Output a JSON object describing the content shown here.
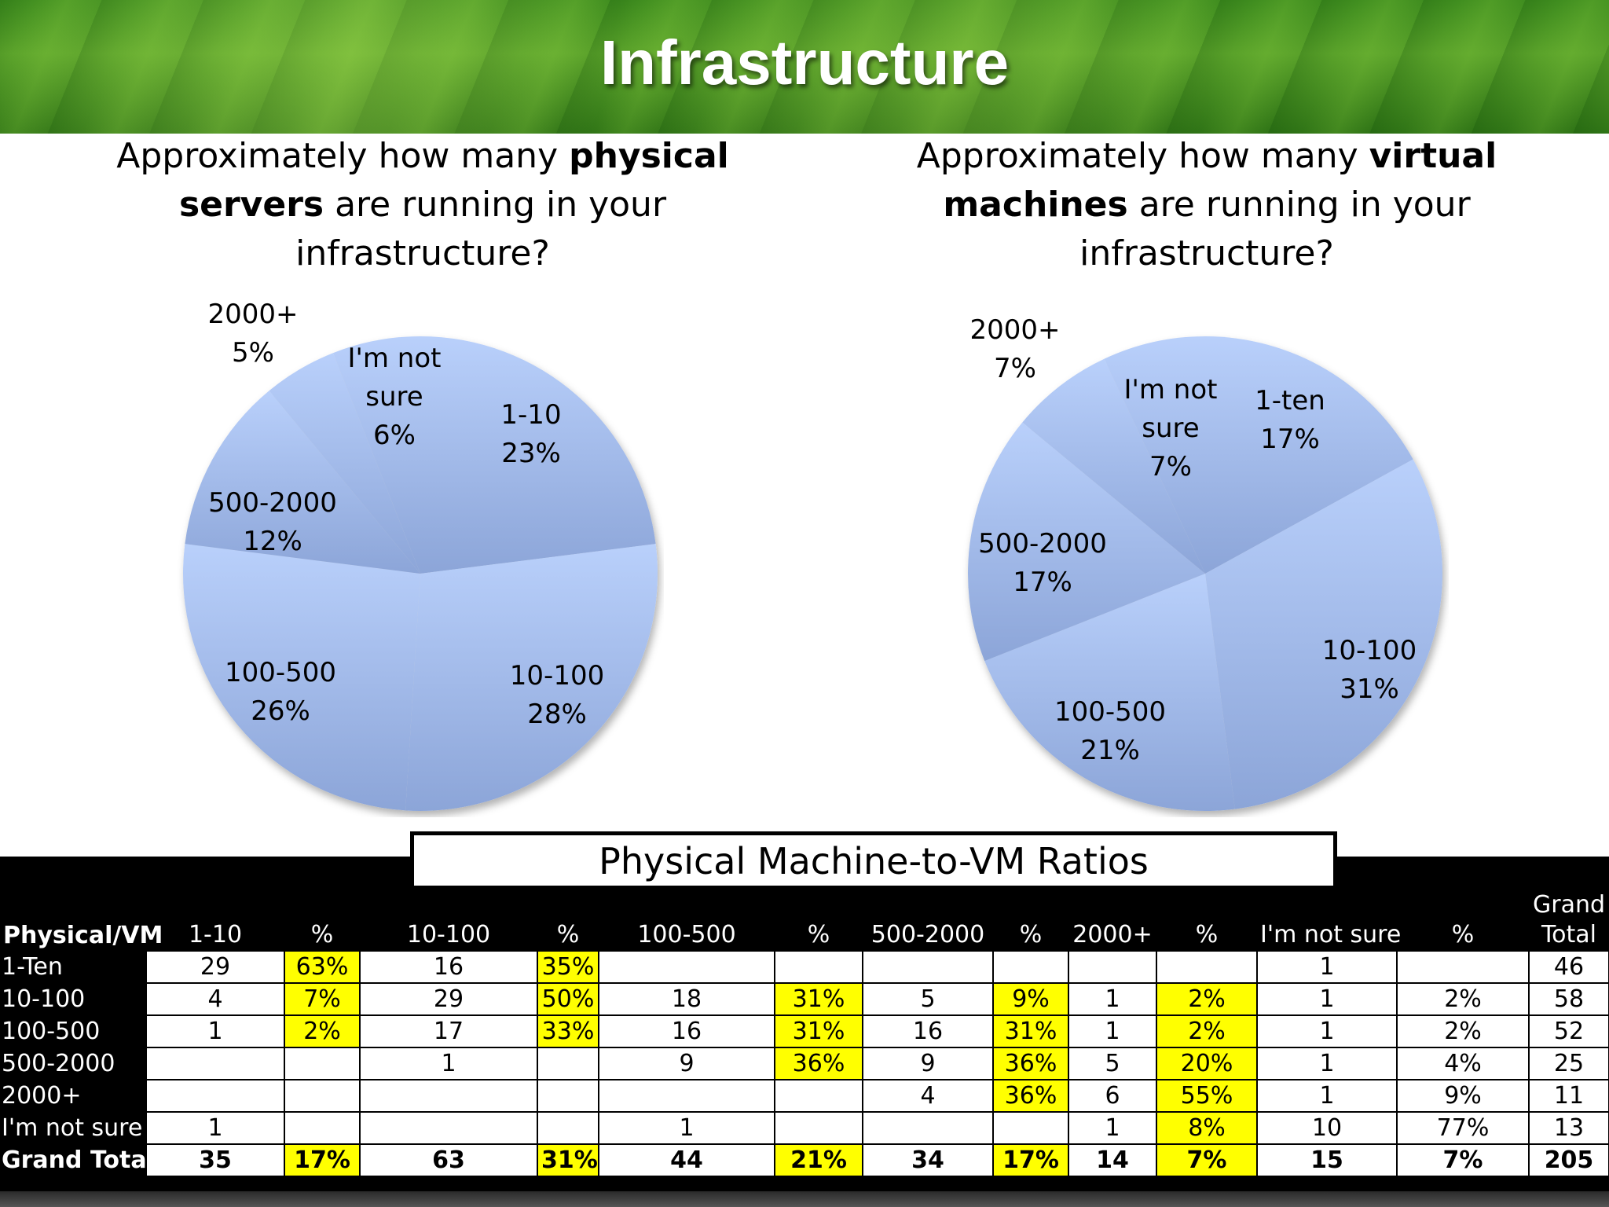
{
  "slide_title": "Infrastructure",
  "colors": {
    "pie_top": "#b7cdfa",
    "pie_bottom": "#8ea6d9",
    "highlight": "#ffff00",
    "header_bg": "#000000"
  },
  "chart_data": [
    {
      "type": "pie",
      "title_parts": [
        "Approximately how many ",
        "physical servers",
        " are running in your infrastructure?"
      ],
      "categories": [
        "1-10",
        "10-100",
        "100-500",
        "500-2000",
        "2000+",
        "I'm not sure"
      ],
      "values": [
        23,
        28,
        26,
        12,
        5,
        6
      ],
      "value_labels": [
        "23%",
        "28%",
        "26%",
        "12%",
        "5%",
        "6%"
      ],
      "label_lines": [
        [
          "I'm not",
          "sure"
        ]
      ]
    },
    {
      "type": "pie",
      "title_parts": [
        "Approximately how many ",
        "virtual machines",
        " are running in your infrastructure?"
      ],
      "categories": [
        "1-ten",
        "10-100",
        "100-500",
        "500-2000",
        "2000+",
        "I'm not sure"
      ],
      "values": [
        17,
        31,
        21,
        17,
        7,
        7
      ],
      "value_labels": [
        "17%",
        "31%",
        "21%",
        "17%",
        "7%",
        "7%"
      ],
      "label_lines": [
        [
          "I'm not",
          "sure"
        ]
      ]
    },
    {
      "type": "table",
      "title": "Physical Machine-to-VM Ratios",
      "header": [
        "Physical/VM",
        "1-10",
        "%",
        "10-100",
        "%",
        "100-500",
        "%",
        "500-2000",
        "%",
        "2000+",
        "%",
        "I'm not sure",
        "%",
        "Grand Total"
      ],
      "header_last_lines": [
        "Grand",
        "Total"
      ],
      "rows": [
        [
          "1-Ten",
          "29",
          "63%",
          "16",
          "35%",
          "",
          "",
          "",
          "",
          "",
          "",
          "1",
          "",
          "46"
        ],
        [
          "10-100",
          "4",
          "7%",
          "29",
          "50%",
          "18",
          "31%",
          "5",
          "9%",
          "1",
          "2%",
          "1",
          "2%",
          "58"
        ],
        [
          "100-500",
          "1",
          "2%",
          "17",
          "33%",
          "16",
          "31%",
          "16",
          "31%",
          "1",
          "2%",
          "1",
          "2%",
          "52"
        ],
        [
          "500-2000",
          "",
          "",
          "1",
          "",
          "9",
          "36%",
          "9",
          "36%",
          "5",
          "20%",
          "1",
          "4%",
          "25"
        ],
        [
          "2000+",
          "",
          "",
          "",
          "",
          "",
          "",
          "4",
          "36%",
          "6",
          "55%",
          "1",
          "9%",
          "11"
        ],
        [
          "I'm not sure",
          "1",
          "",
          "",
          "",
          "1",
          "",
          "",
          "",
          "1",
          "8%",
          "10",
          "77%",
          "13"
        ],
        [
          "Grand Total",
          "35",
          "17%",
          "63",
          "31%",
          "44",
          "21%",
          "34",
          "17%",
          "14",
          "7%",
          "15",
          "7%",
          "205"
        ]
      ],
      "highlight_columns": [
        2,
        4,
        6,
        8,
        10
      ]
    }
  ]
}
